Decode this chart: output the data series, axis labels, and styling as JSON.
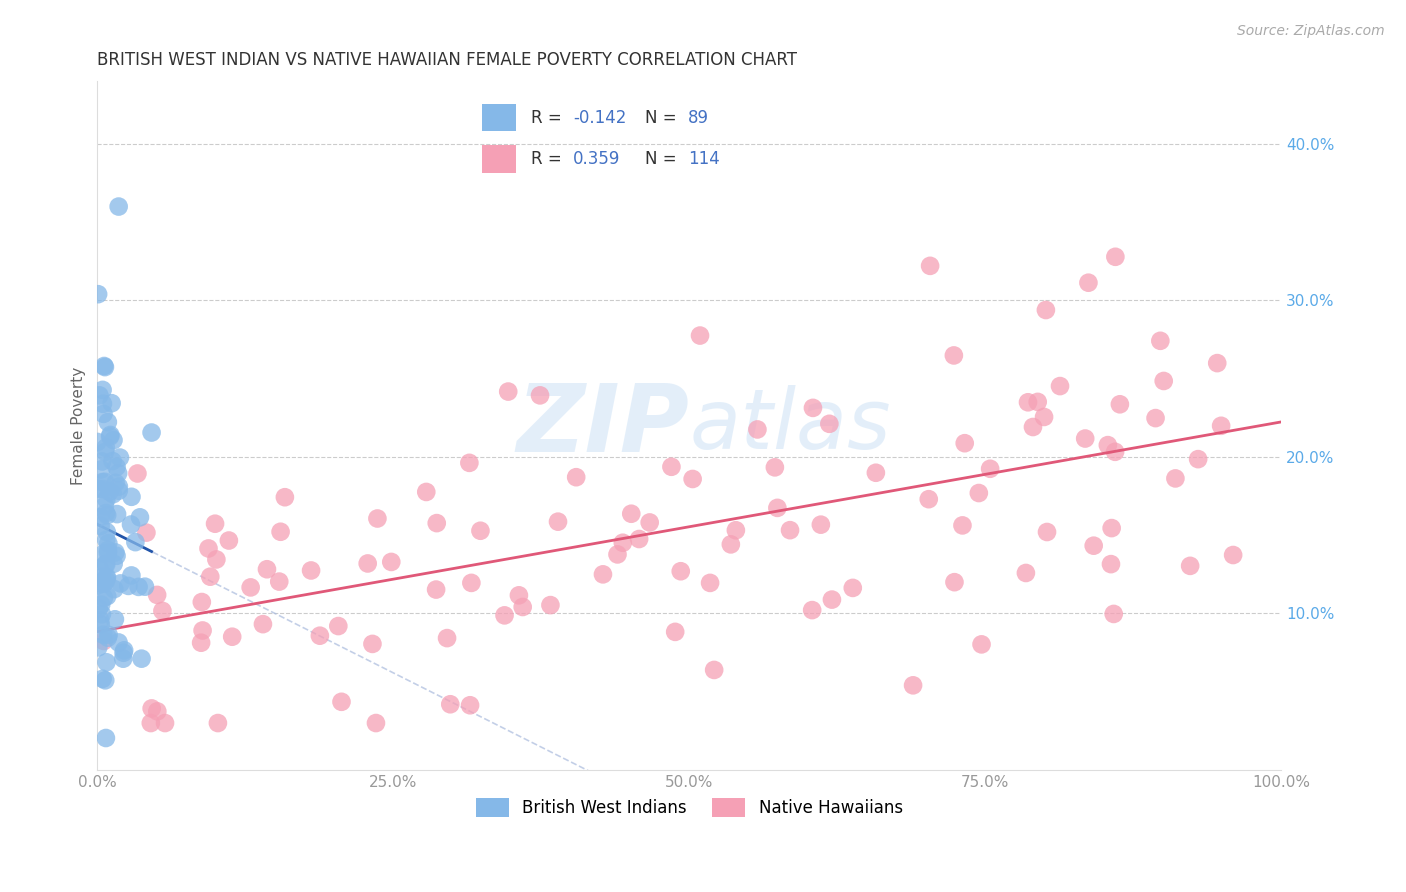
{
  "title": "BRITISH WEST INDIAN VS NATIVE HAWAIIAN FEMALE POVERTY CORRELATION CHART",
  "source": "Source: ZipAtlas.com",
  "ylabel": "Female Poverty",
  "xlim": [
    0,
    1.0
  ],
  "ylim": [
    0,
    0.44
  ],
  "xtick_vals": [
    0,
    0.25,
    0.5,
    0.75,
    1.0
  ],
  "xticklabels": [
    "0.0%",
    "25.0%",
    "50.0%",
    "75.0%",
    "100.0%"
  ],
  "ytick_vals": [
    0.1,
    0.2,
    0.3,
    0.4
  ],
  "yticklabels": [
    "10.0%",
    "20.0%",
    "30.0%",
    "40.0%"
  ],
  "watermark": "ZIPAtlas",
  "group1_label": "British West Indians",
  "group2_label": "Native Hawaiians",
  "group1_color": "#85b8e8",
  "group2_color": "#f5a0b5",
  "group1_R": -0.142,
  "group1_N": 89,
  "group2_R": 0.359,
  "group2_N": 114,
  "group1_line_color": "#2255aa",
  "group2_line_color": "#e05878",
  "background_color": "#ffffff",
  "grid_color": "#cccccc",
  "title_color": "#333333",
  "legend_text_color": "#4472c4",
  "right_axis_color": "#5baae8",
  "watermark_color": "#c8dff5"
}
